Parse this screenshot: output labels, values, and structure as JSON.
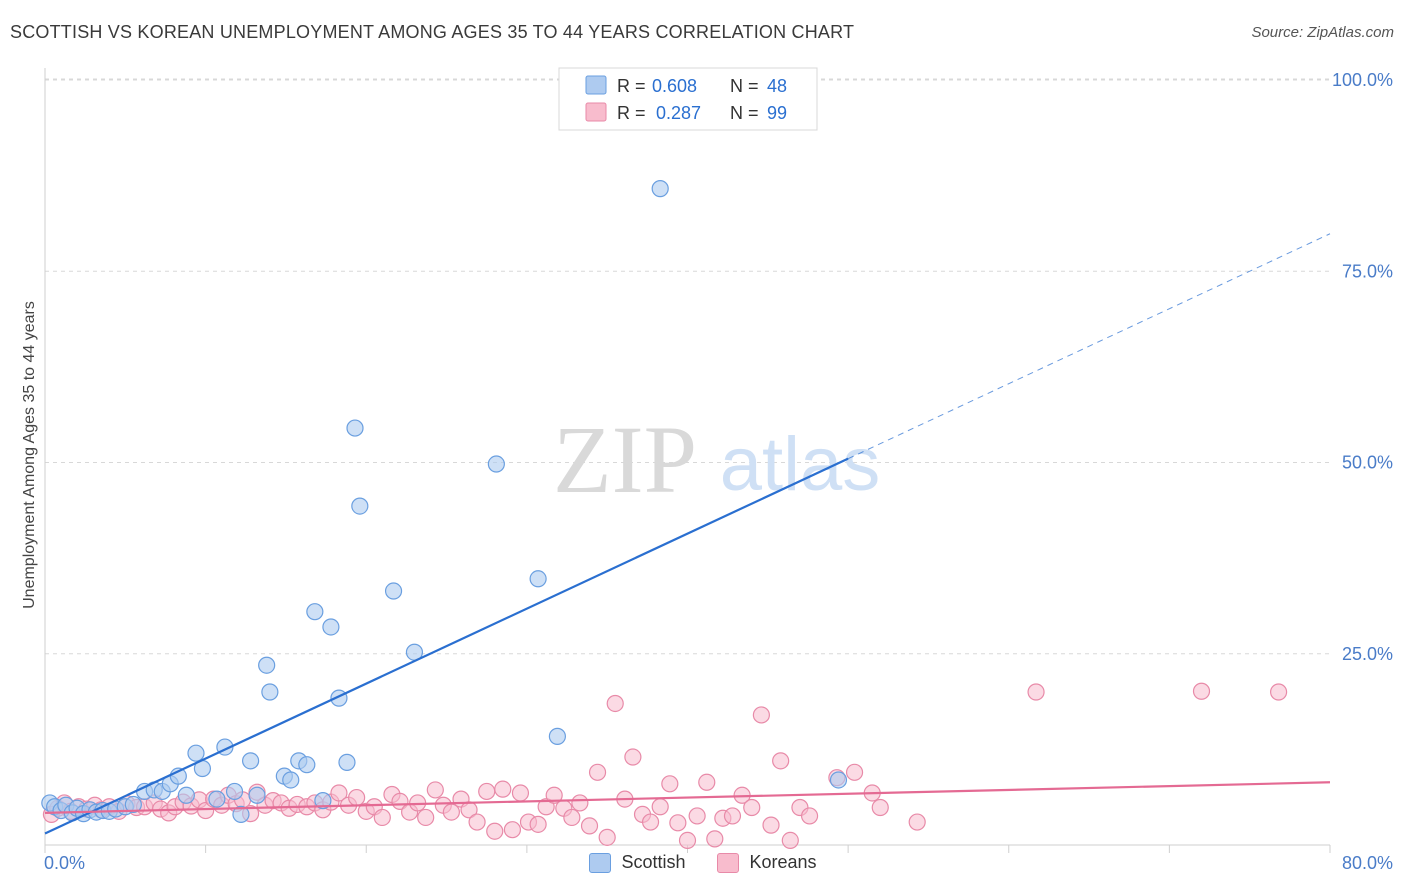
{
  "title": "SCOTTISH VS KOREAN UNEMPLOYMENT AMONG AGES 35 TO 44 YEARS CORRELATION CHART",
  "source": "Source: ZipAtlas.com",
  "watermark": {
    "zip": "ZIP",
    "atlas": "atlas"
  },
  "colors": {
    "scottish_fill": "#aecbf0",
    "scottish_stroke": "#6a9fe0",
    "scottish_line": "#2a6fd0",
    "korean_fill": "#f8bccd",
    "korean_stroke": "#e88aa8",
    "korean_line": "#e46a93",
    "axis_text": "#4a7cc8",
    "grid": "#d8d8d8"
  },
  "legend": {
    "rows": [
      {
        "r_label": "R =",
        "r_value": "0.608",
        "n_label": "N =",
        "n_value": "48"
      },
      {
        "r_label": "R =",
        "r_value": "0.287",
        "n_label": "N =",
        "n_value": "99"
      }
    ]
  },
  "bottom_legend": {
    "scottish": "Scottish",
    "koreans": "Koreans"
  },
  "chart_data": {
    "type": "scatter",
    "title": "SCOTTISH VS KOREAN UNEMPLOYMENT AMONG AGES 35 TO 44 YEARS CORRELATION CHART",
    "xlabel": "",
    "ylabel": "Unemployment Among Ages 35 to 44 years",
    "xlim": [
      0,
      80
    ],
    "ylim": [
      0,
      100
    ],
    "x_tick_labels": [
      "0.0%",
      "80.0%"
    ],
    "y_ticks": [
      25,
      50,
      75,
      100
    ],
    "y_tick_labels": [
      "25.0%",
      "50.0%",
      "75.0%",
      "100.0%"
    ],
    "series": [
      {
        "name": "Scottish",
        "r": 0.608,
        "n": 48,
        "trend": {
          "x0": 0,
          "y0": 1.5,
          "x1": 50,
          "y1": 50.5,
          "x_dash_end": 80,
          "y_dash_end": 79.9
        },
        "points": [
          [
            0.3,
            5.5
          ],
          [
            0.6,
            5.0
          ],
          [
            1.0,
            4.5
          ],
          [
            1.3,
            5.2
          ],
          [
            1.7,
            4.2
          ],
          [
            2.0,
            4.8
          ],
          [
            2.4,
            4.1
          ],
          [
            2.8,
            4.6
          ],
          [
            3.2,
            4.3
          ],
          [
            3.6,
            4.5
          ],
          [
            4.0,
            4.4
          ],
          [
            4.4,
            4.7
          ],
          [
            5.0,
            5.0
          ],
          [
            5.5,
            5.3
          ],
          [
            6.2,
            7.0
          ],
          [
            6.8,
            7.2
          ],
          [
            7.3,
            7.0
          ],
          [
            7.8,
            8.0
          ],
          [
            8.3,
            9.0
          ],
          [
            8.8,
            6.5
          ],
          [
            9.4,
            12.0
          ],
          [
            9.8,
            10.0
          ],
          [
            10.7,
            6.0
          ],
          [
            11.2,
            12.8
          ],
          [
            11.8,
            7.0
          ],
          [
            12.2,
            4.0
          ],
          [
            12.8,
            11.0
          ],
          [
            13.2,
            6.5
          ],
          [
            13.8,
            23.5
          ],
          [
            14.0,
            20.0
          ],
          [
            14.9,
            9.0
          ],
          [
            15.3,
            8.5
          ],
          [
            15.8,
            11.0
          ],
          [
            16.3,
            10.5
          ],
          [
            16.8,
            30.5
          ],
          [
            17.3,
            5.8
          ],
          [
            17.8,
            28.5
          ],
          [
            18.3,
            19.2
          ],
          [
            18.8,
            10.8
          ],
          [
            19.3,
            54.5
          ],
          [
            19.6,
            44.3
          ],
          [
            21.7,
            33.2
          ],
          [
            23.0,
            25.2
          ],
          [
            28.1,
            49.8
          ],
          [
            30.7,
            34.8
          ],
          [
            31.9,
            14.2
          ],
          [
            38.3,
            85.8
          ],
          [
            49.4,
            8.5
          ]
        ]
      },
      {
        "name": "Koreans",
        "r": 0.287,
        "n": 99,
        "trend": {
          "x0": 0,
          "y0": 4.2,
          "x1": 80,
          "y1": 8.2
        },
        "points": [
          [
            0.4,
            4.0
          ],
          [
            0.8,
            4.8
          ],
          [
            1.2,
            5.5
          ],
          [
            1.6,
            4.4
          ],
          [
            2.1,
            5.0
          ],
          [
            2.6,
            4.7
          ],
          [
            3.1,
            5.2
          ],
          [
            3.5,
            4.6
          ],
          [
            4.0,
            5.0
          ],
          [
            4.6,
            4.4
          ],
          [
            5.1,
            5.4
          ],
          [
            5.7,
            4.9
          ],
          [
            6.2,
            5.0
          ],
          [
            6.8,
            5.5
          ],
          [
            7.2,
            4.7
          ],
          [
            7.7,
            4.2
          ],
          [
            8.1,
            5.0
          ],
          [
            8.6,
            5.6
          ],
          [
            9.1,
            5.1
          ],
          [
            9.6,
            5.9
          ],
          [
            10.0,
            4.5
          ],
          [
            10.5,
            6.0
          ],
          [
            11.0,
            5.2
          ],
          [
            11.4,
            6.5
          ],
          [
            11.9,
            5.4
          ],
          [
            12.3,
            5.9
          ],
          [
            12.8,
            4.1
          ],
          [
            13.2,
            6.9
          ],
          [
            13.7,
            5.2
          ],
          [
            14.2,
            5.8
          ],
          [
            14.7,
            5.5
          ],
          [
            15.2,
            4.8
          ],
          [
            15.7,
            5.3
          ],
          [
            16.3,
            5.0
          ],
          [
            16.8,
            5.5
          ],
          [
            17.3,
            4.6
          ],
          [
            17.8,
            5.6
          ],
          [
            18.3,
            6.8
          ],
          [
            18.9,
            5.2
          ],
          [
            19.4,
            6.2
          ],
          [
            20.0,
            4.4
          ],
          [
            20.5,
            5.0
          ],
          [
            21.0,
            3.6
          ],
          [
            21.6,
            6.6
          ],
          [
            22.1,
            5.7
          ],
          [
            22.7,
            4.3
          ],
          [
            23.2,
            5.5
          ],
          [
            23.7,
            3.6
          ],
          [
            24.3,
            7.2
          ],
          [
            24.8,
            5.2
          ],
          [
            25.3,
            4.3
          ],
          [
            25.9,
            6.0
          ],
          [
            26.4,
            4.6
          ],
          [
            26.9,
            3.0
          ],
          [
            27.5,
            7.0
          ],
          [
            28.0,
            1.8
          ],
          [
            28.5,
            7.3
          ],
          [
            29.1,
            2.0
          ],
          [
            29.6,
            6.8
          ],
          [
            30.1,
            3.0
          ],
          [
            30.7,
            2.7
          ],
          [
            31.2,
            5.0
          ],
          [
            31.7,
            6.5
          ],
          [
            32.3,
            4.8
          ],
          [
            32.8,
            3.6
          ],
          [
            33.3,
            5.5
          ],
          [
            33.9,
            2.5
          ],
          [
            34.4,
            9.5
          ],
          [
            35.0,
            1.0
          ],
          [
            35.5,
            18.5
          ],
          [
            36.1,
            6.0
          ],
          [
            36.6,
            11.5
          ],
          [
            37.2,
            4.0
          ],
          [
            37.7,
            3.0
          ],
          [
            38.3,
            5.0
          ],
          [
            38.9,
            8.0
          ],
          [
            39.4,
            2.9
          ],
          [
            40.0,
            0.6
          ],
          [
            40.6,
            3.8
          ],
          [
            41.2,
            8.2
          ],
          [
            41.7,
            0.8
          ],
          [
            42.2,
            3.5
          ],
          [
            42.8,
            3.8
          ],
          [
            43.4,
            6.5
          ],
          [
            44.0,
            4.9
          ],
          [
            44.6,
            17.0
          ],
          [
            45.2,
            2.6
          ],
          [
            45.8,
            11.0
          ],
          [
            46.4,
            0.6
          ],
          [
            47.0,
            4.9
          ],
          [
            47.6,
            3.8
          ],
          [
            49.3,
            8.8
          ],
          [
            50.4,
            9.5
          ],
          [
            51.5,
            6.8
          ],
          [
            54.3,
            3.0
          ],
          [
            61.7,
            20.0
          ],
          [
            72.0,
            20.1
          ],
          [
            76.8,
            20.0
          ],
          [
            52.0,
            4.9
          ]
        ]
      }
    ]
  }
}
